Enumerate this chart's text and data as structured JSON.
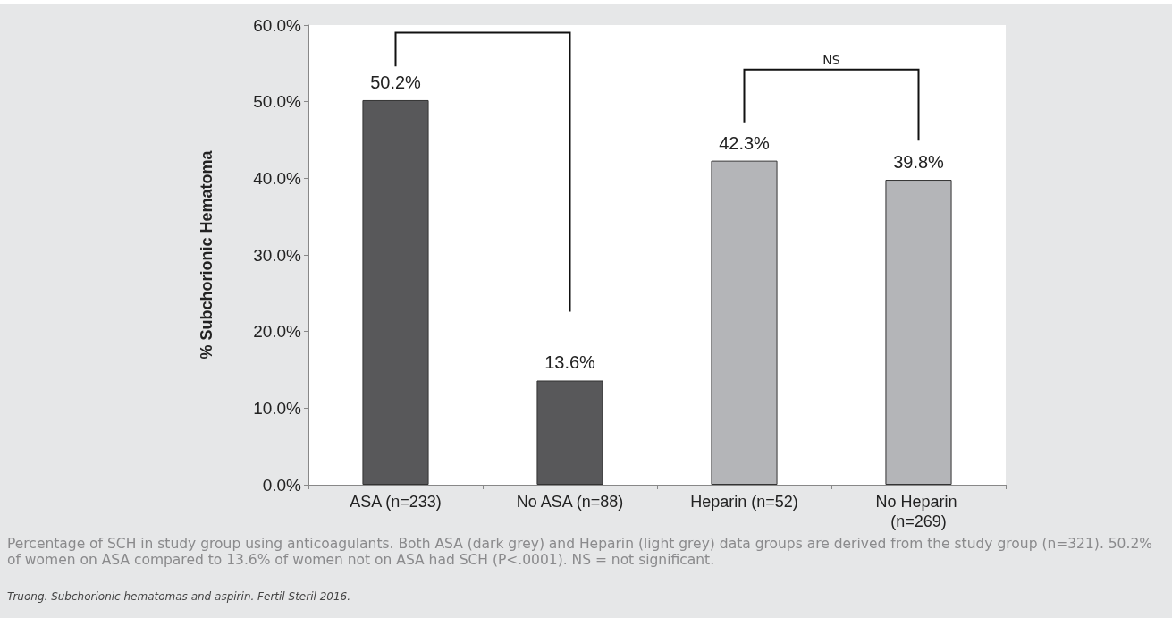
{
  "chart_data": {
    "type": "bar",
    "ylabel": "% Subchorionic Hematoma",
    "categories": [
      "ASA (n=233)",
      "No ASA (n=88)",
      "Heparin (n=52)",
      "No Heparin (n=269)"
    ],
    "values": [
      50.2,
      13.6,
      42.3,
      39.8
    ],
    "colors": [
      "#58585a",
      "#58585a",
      "#b4b5b8",
      "#b4b5b8"
    ],
    "value_labels": [
      "50.2%",
      "13.6%",
      "42.3%",
      "39.8%"
    ],
    "ylim": [
      0,
      60
    ],
    "yticks": [
      {
        "value": 0,
        "label": "0.0%"
      },
      {
        "value": 10,
        "label": "10.0%"
      },
      {
        "value": 20,
        "label": "20.0%"
      },
      {
        "value": 30,
        "label": "30.0%"
      },
      {
        "value": 40,
        "label": "40.0%"
      },
      {
        "value": 50,
        "label": "50.0%"
      },
      {
        "value": 60,
        "label": "60.0%"
      }
    ],
    "grid": false,
    "annotations": [
      "NS",
      "Percentage of SCH in study group using anticoagulants. Both ASA (dark grey) and Heparin (light grey) data groups are derived from the study group (n=321). 50.2% of women on ASA compared to 13.6% of women not on ASA had SCH (P<.0001). NS = not significant.",
      "Truong. Subchorionic hematomas and aspirin. Fertil Steril 2016."
    ]
  }
}
